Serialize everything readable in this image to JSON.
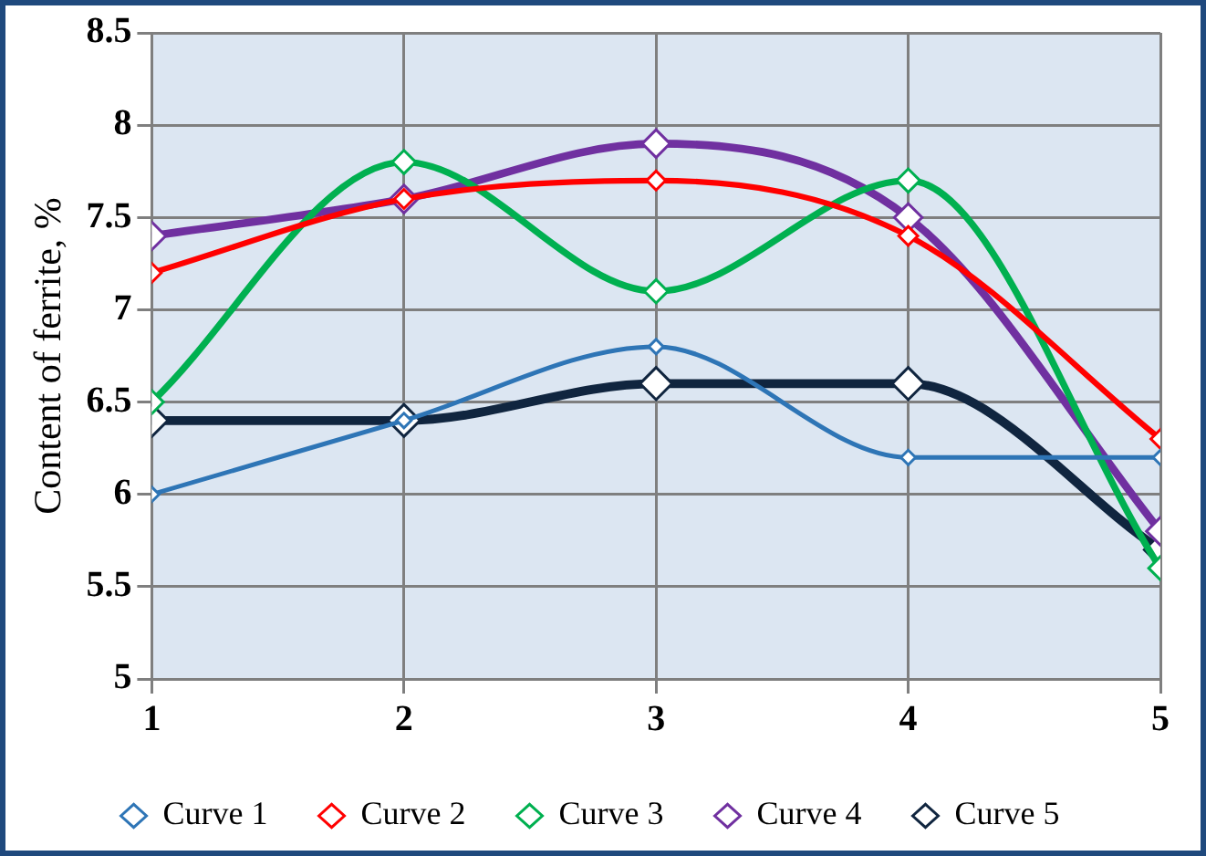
{
  "chart_data": {
    "type": "line",
    "ylabel": "Content of ferrite, %",
    "x": [
      1,
      2,
      3,
      4,
      5
    ],
    "xlim": [
      1,
      5
    ],
    "xticks": [
      1,
      2,
      3,
      4,
      5
    ],
    "ylim": [
      5,
      8.5
    ],
    "yticks": [
      5,
      5.5,
      6,
      6.5,
      7,
      7.5,
      8,
      8.5
    ],
    "grid": true,
    "legend": "bottom",
    "marker": "diamond",
    "line_style": "solid",
    "series": [
      {
        "name": "Curve 1",
        "color": "#2e75b6",
        "values": [
          6.0,
          6.4,
          6.8,
          6.2,
          6.2
        ]
      },
      {
        "name": "Curve 2",
        "color": "#ff0000",
        "values": [
          7.2,
          7.6,
          7.7,
          7.4,
          6.3
        ]
      },
      {
        "name": "Curve 3",
        "color": "#00b050",
        "values": [
          6.5,
          7.8,
          7.1,
          7.7,
          5.6
        ]
      },
      {
        "name": "Curve 4",
        "color": "#7030a0",
        "values": [
          7.4,
          7.6,
          7.9,
          7.5,
          5.8
        ]
      },
      {
        "name": "Curve 5",
        "color": "#10253f",
        "values": [
          6.4,
          6.4,
          6.6,
          6.6,
          5.7
        ]
      }
    ]
  }
}
